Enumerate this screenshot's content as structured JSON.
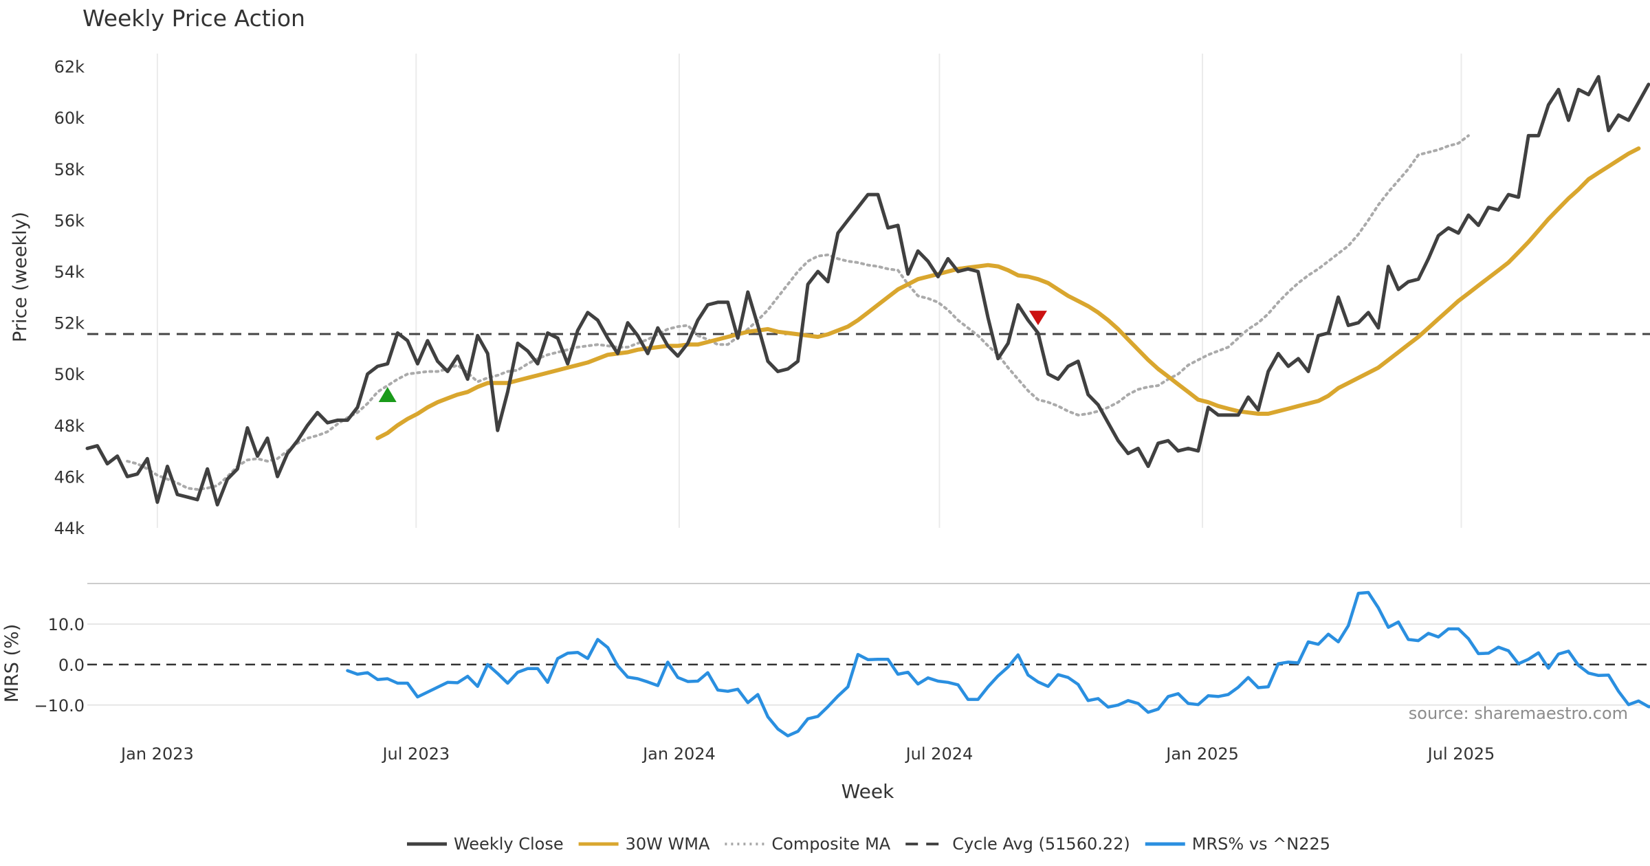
{
  "chart_data": [
    {
      "type": "line",
      "panel": "price",
      "title": "Weekly Price Action",
      "ylabel": "Price (weekly)",
      "ylim": [
        44000,
        62500
      ],
      "yticks": [
        44000,
        46000,
        48000,
        50000,
        52000,
        54000,
        56000,
        58000,
        60000,
        62000
      ],
      "ytick_labels": [
        "44k",
        "46k",
        "48k",
        "50k",
        "52k",
        "54k",
        "56k",
        "58k",
        "60k",
        "62k"
      ],
      "x_domain": [
        "2022-11-13",
        "2025-11-10"
      ],
      "xticks": [
        "2023-01-01",
        "2023-07-01",
        "2024-01-01",
        "2024-07-01",
        "2025-01-01",
        "2025-07-01"
      ],
      "xtick_labels": [
        "Jan 2023",
        "Jul 2023",
        "Jan 2024",
        "Jul 2024",
        "Jan 2025",
        "Jul 2025"
      ],
      "grid": "vertical",
      "series": [
        {
          "name": "Weekly Close",
          "color": "#404040",
          "style": "solid",
          "x_start": "2022-11-13",
          "x_step_days": 7,
          "values": [
            47100,
            47200,
            46500,
            46800,
            46000,
            46100,
            46700,
            45000,
            46400,
            45300,
            45200,
            45100,
            46300,
            44900,
            45900,
            46300,
            47900,
            46800,
            47500,
            46000,
            46900,
            47400,
            48000,
            48500,
            48100,
            48200,
            48200,
            48700,
            50000,
            50300,
            50400,
            51600,
            51300,
            50400,
            51300,
            50500,
            50100,
            50700,
            49800,
            51500,
            50800,
            47800,
            49300,
            51200,
            50900,
            50400,
            51600,
            51400,
            50400,
            51700,
            52400,
            52100,
            51400,
            50800,
            52000,
            51500,
            50800,
            51800,
            51100,
            50700,
            51200,
            52100,
            52700,
            52800,
            52800,
            51400,
            53200,
            51900,
            50500,
            50100,
            50200,
            50500,
            53500,
            54000,
            53600,
            55500,
            56000,
            56500,
            57000,
            57000,
            55700,
            55800,
            53900,
            54800,
            54400,
            53800,
            54500,
            54000,
            54100,
            54000,
            52200,
            50600,
            51200,
            52700,
            52100,
            51600,
            50000,
            49800,
            50300,
            50500,
            49200,
            48800,
            48100,
            47400,
            46900,
            47100,
            46400,
            47300,
            47400,
            47000,
            47100,
            47000,
            48700,
            48400,
            48400,
            48400,
            49100,
            48600,
            50100,
            50800,
            50300,
            50600,
            50100,
            51500,
            51600,
            53000,
            51900,
            52000,
            52400,
            51800,
            54200,
            53300,
            53600,
            53700,
            54500,
            55400,
            55700,
            55500,
            56200,
            55800,
            56500,
            56400,
            57000,
            56900,
            59300,
            59300,
            60500,
            61100,
            59900,
            61100,
            60900,
            61600,
            59500,
            60100,
            59900,
            60600,
            61300
          ]
        },
        {
          "name": "30W WMA",
          "color": "#d9a62e",
          "style": "solid",
          "x_start": "2023-06-04",
          "x_step_days": 7,
          "values": [
            47500,
            47700,
            48000,
            48250,
            48450,
            48700,
            48900,
            49050,
            49200,
            49300,
            49500,
            49650,
            49650,
            49650,
            49750,
            49850,
            49950,
            50050,
            50150,
            50250,
            50350,
            50450,
            50600,
            50750,
            50800,
            50850,
            50950,
            51000,
            51050,
            51100,
            51100,
            51150,
            51150,
            51250,
            51350,
            51450,
            51550,
            51650,
            51700,
            51750,
            51650,
            51600,
            51550,
            51500,
            51450,
            51550,
            51700,
            51850,
            52100,
            52400,
            52700,
            53000,
            53300,
            53500,
            53700,
            53800,
            53900,
            54000,
            54100,
            54150,
            54200,
            54250,
            54200,
            54050,
            53850,
            53800,
            53700,
            53550,
            53300,
            53050,
            52850,
            52650,
            52400,
            52100,
            51750,
            51350,
            50950,
            50550,
            50200,
            49900,
            49600,
            49300,
            49000,
            48900,
            48750,
            48650,
            48550,
            48500,
            48450,
            48450,
            48550,
            48650,
            48750,
            48850,
            48950,
            49150,
            49450,
            49650,
            49850,
            50050,
            50250,
            50550,
            50850,
            51150,
            51450,
            51800,
            52150,
            52500,
            52850,
            53150,
            53450,
            53750,
            54050,
            54350,
            54750,
            55150,
            55600,
            56050,
            56450,
            56850,
            57200,
            57600,
            57850,
            58100,
            58350,
            58600,
            58800
          ]
        },
        {
          "name": "Composite MA",
          "color": "#aaaaaa",
          "style": "dotted",
          "x_start": "2022-12-11",
          "x_step_days": 7,
          "values": [
            46600,
            46500,
            46300,
            46050,
            45900,
            45750,
            45550,
            45500,
            45550,
            45650,
            46000,
            46400,
            46650,
            46700,
            46600,
            46700,
            47000,
            47300,
            47500,
            47600,
            47750,
            48050,
            48300,
            48500,
            48850,
            49300,
            49550,
            49800,
            50000,
            50050,
            50100,
            50100,
            50200,
            50350,
            50050,
            49700,
            49850,
            49950,
            50100,
            50150,
            50400,
            50600,
            50750,
            50850,
            50950,
            51050,
            51100,
            51150,
            51100,
            51050,
            51050,
            51200,
            51350,
            51550,
            51750,
            51850,
            51900,
            51500,
            51350,
            51150,
            51150,
            51450,
            51750,
            52100,
            52500,
            53000,
            53500,
            54000,
            54400,
            54600,
            54650,
            54500,
            54400,
            54350,
            54250,
            54200,
            54100,
            54050,
            53500,
            53050,
            52950,
            52800,
            52500,
            52100,
            51800,
            51500,
            51100,
            50750,
            50250,
            49800,
            49350,
            49000,
            48900,
            48750,
            48550,
            48400,
            48450,
            48550,
            48700,
            48900,
            49200,
            49400,
            49500,
            49550,
            49800,
            50000,
            50350,
            50550,
            50750,
            50900,
            51050,
            51400,
            51750,
            52000,
            52350,
            52800,
            53200,
            53550,
            53850,
            54100,
            54400,
            54700,
            55000,
            55450,
            56000,
            56600,
            57100,
            57550,
            58000,
            58550,
            58650,
            58750,
            58900,
            59000,
            59300
          ]
        },
        {
          "name": "Cycle Avg (51560.22)",
          "color": "#444444",
          "style": "dashed",
          "value": 51560.22
        }
      ],
      "annotations": [
        {
          "type": "buy-signal",
          "date": "2023-06-11",
          "value": 49200,
          "color": "#1a9a1a"
        },
        {
          "type": "sell-signal",
          "date": "2024-09-08",
          "value": 52200,
          "color": "#cc1111"
        }
      ]
    },
    {
      "type": "line",
      "panel": "mrs",
      "ylabel": "MRS (%)",
      "ylim": [
        -17.5,
        19.5
      ],
      "yticks": [
        -10,
        0,
        10
      ],
      "ytick_labels": [
        "−10.0",
        "0.0",
        "10.0"
      ],
      "xlabel": "Week",
      "grid": "horizontal",
      "annotation_text": "source: sharemaestro.com",
      "series": [
        {
          "name": "MRS% vs ^N225",
          "color": "#2a8fe0",
          "style": "solid",
          "x_start": "2023-05-14",
          "x_step_days": 7,
          "values": [
            -1.5,
            -2.4,
            -2.0,
            -3.7,
            -3.5,
            -4.6,
            -4.6,
            -8.0,
            -6.8,
            -5.6,
            -4.4,
            -4.5,
            -2.9,
            -5.4,
            0.0,
            -2.2,
            -4.6,
            -1.9,
            -1.0,
            -1.0,
            -4.4,
            1.5,
            2.8,
            3.0,
            1.5,
            6.2,
            4.2,
            -0.3,
            -3.1,
            -3.5,
            -4.3,
            -5.2,
            0.6,
            -3.2,
            -4.2,
            -4.1,
            -2.0,
            -6.3,
            -6.6,
            -6.1,
            -9.4,
            -7.4,
            -12.9,
            -15.9,
            -17.6,
            -16.5,
            -13.4,
            -12.8,
            -10.4,
            -7.8,
            -5.5,
            2.5,
            1.2,
            1.3,
            1.3,
            -2.4,
            -1.9,
            -4.8,
            -3.3,
            -4.1,
            -4.4,
            -5.0,
            -8.6,
            -8.6,
            -5.5,
            -2.8,
            -0.6,
            2.4,
            -2.6,
            -4.3,
            -5.4,
            -2.5,
            -3.2,
            -4.9,
            -8.9,
            -8.4,
            -10.5,
            -10.0,
            -8.9,
            -9.6,
            -11.8,
            -11.0,
            -7.9,
            -7.2,
            -9.6,
            -9.9,
            -7.7,
            -7.9,
            -7.4,
            -5.6,
            -3.2,
            -5.7,
            -5.5,
            0.2,
            0.6,
            0.4,
            5.6,
            5.0,
            7.5,
            5.6,
            9.6,
            17.6,
            17.8,
            14.0,
            9.2,
            10.5,
            6.2,
            5.9,
            7.7,
            6.8,
            8.8,
            8.8,
            6.4,
            2.7,
            2.8,
            4.3,
            3.4,
            0.2,
            1.3,
            2.9,
            -0.9,
            2.6,
            3.3,
            -0.2,
            -2.1,
            -2.7,
            -2.6,
            -6.6,
            -9.9,
            -9.0,
            -10.4,
            -10.5
          ]
        },
        {
          "name": "zero-line",
          "color": "#333333",
          "style": "dashed",
          "value": 0
        }
      ]
    }
  ],
  "legend": {
    "placement": "bottom-center",
    "entries": [
      {
        "label": "Weekly Close",
        "color": "#404040",
        "style": "solid"
      },
      {
        "label": "30W WMA",
        "color": "#d9a62e",
        "style": "solid"
      },
      {
        "label": "Composite MA",
        "color": "#aaaaaa",
        "style": "dotted"
      },
      {
        "label": "Cycle Avg (51560.22)",
        "color": "#444444",
        "style": "dashed"
      },
      {
        "label": "MRS% vs ^N225",
        "color": "#2a8fe0",
        "style": "solid"
      }
    ]
  }
}
